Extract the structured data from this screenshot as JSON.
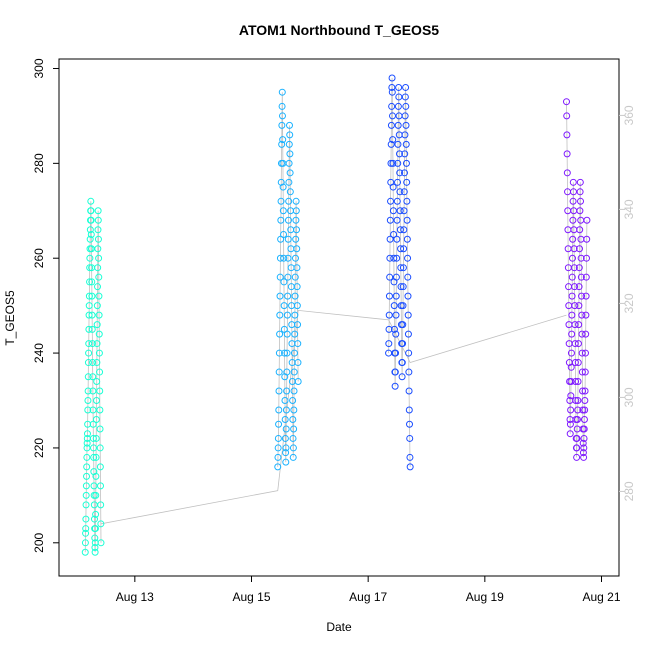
{
  "chart_data": {
    "type": "scatter",
    "title": "ATOM1 Northbound T_GEOS5",
    "xlabel": "Date",
    "ylabel": "T_GEOS5",
    "x_ticks": [
      "Aug 13",
      "Aug 15",
      "Aug 17",
      "Aug 19",
      "Aug 21"
    ],
    "x_tick_days": [
      13,
      15,
      17,
      19,
      21
    ],
    "xlim_days": [
      11.7,
      21.3
    ],
    "y_ticks": [
      200,
      220,
      240,
      260,
      280,
      300
    ],
    "ylim": [
      193,
      302
    ],
    "y2_ticks": [
      280,
      300,
      320,
      340,
      360
    ],
    "y2lim": [
      262,
      372
    ],
    "y2_color": "#c8c8c8",
    "grid": false,
    "legend": "none",
    "line_color": "#c0c0c0",
    "series": [
      {
        "color": "#1affd5",
        "x_start_day": 12.15,
        "x_end_day": 12.42,
        "values": [
          198,
          200,
          202,
          203,
          205,
          208,
          210,
          212,
          214,
          216,
          218,
          220,
          221,
          222,
          223,
          225,
          228,
          230,
          232,
          235,
          238,
          240,
          242,
          245,
          248,
          250,
          252,
          255,
          258,
          260,
          262,
          264,
          266,
          268,
          270,
          272,
          270,
          268,
          265,
          262,
          258,
          255,
          252,
          248,
          245,
          242,
          238,
          235,
          232,
          228,
          225,
          222,
          220,
          218,
          215,
          212,
          210,
          208,
          205,
          203,
          201,
          199,
          198,
          200,
          203,
          206,
          210,
          214,
          218,
          222,
          226,
          230,
          234,
          238,
          242,
          246,
          250,
          254,
          258,
          262,
          266,
          270,
          268,
          264,
          260,
          256,
          252,
          248,
          244,
          240,
          236,
          232,
          228,
          224,
          220,
          216,
          212,
          208,
          204,
          200
        ]
      },
      {
        "color": "#1ab2ff",
        "x_start_day": 15.45,
        "x_end_day": 15.8,
        "values": [
          216,
          218,
          220,
          222,
          225,
          228,
          232,
          236,
          240,
          244,
          248,
          252,
          256,
          260,
          264,
          268,
          272,
          276,
          280,
          284,
          288,
          292,
          295,
          290,
          285,
          280,
          275,
          270,
          265,
          260,
          255,
          250,
          245,
          240,
          235,
          230,
          226,
          222,
          219,
          217,
          220,
          224,
          228,
          232,
          236,
          240,
          244,
          248,
          252,
          256,
          260,
          264,
          268,
          272,
          276,
          280,
          284,
          288,
          286,
          282,
          278,
          274,
          270,
          266,
          262,
          258,
          254,
          250,
          246,
          242,
          238,
          234,
          230,
          226,
          222,
          218,
          220,
          224,
          228,
          232,
          236,
          240,
          244,
          248,
          252,
          256,
          260,
          264,
          268,
          272,
          270,
          266,
          262,
          258,
          254,
          250,
          246,
          242,
          238,
          234
        ]
      },
      {
        "color": "#1a4dff",
        "x_start_day": 17.35,
        "x_end_day": 17.72,
        "values": [
          240,
          242,
          245,
          248,
          252,
          256,
          260,
          264,
          268,
          272,
          276,
          280,
          284,
          288,
          292,
          296,
          298,
          295,
          290,
          285,
          280,
          275,
          270,
          265,
          260,
          255,
          250,
          245,
          240,
          236,
          233,
          236,
          240,
          244,
          248,
          252,
          256,
          260,
          264,
          268,
          272,
          276,
          280,
          284,
          288,
          292,
          296,
          294,
          290,
          286,
          282,
          278,
          274,
          270,
          266,
          262,
          258,
          254,
          250,
          246,
          242,
          238,
          235,
          238,
          242,
          246,
          250,
          254,
          258,
          262,
          266,
          270,
          274,
          278,
          282,
          286,
          290,
          294,
          296,
          292,
          288,
          284,
          280,
          276,
          272,
          268,
          264,
          260,
          256,
          252,
          248,
          244,
          240,
          236,
          232,
          228,
          225,
          222,
          218,
          216
        ]
      },
      {
        "color": "#7f1aff",
        "x_start_day": 20.4,
        "x_end_day": 20.75,
        "values": [
          293,
          290,
          286,
          282,
          278,
          274,
          270,
          266,
          262,
          258,
          254,
          250,
          246,
          242,
          238,
          234,
          230,
          226,
          223,
          225,
          228,
          231,
          234,
          237,
          240,
          244,
          248,
          252,
          256,
          260,
          264,
          268,
          272,
          276,
          274,
          270,
          266,
          262,
          258,
          254,
          250,
          246,
          242,
          238,
          234,
          230,
          226,
          222,
          220,
          218,
          220,
          222,
          224,
          226,
          228,
          230,
          234,
          238,
          242,
          246,
          250,
          254,
          258,
          262,
          266,
          270,
          274,
          276,
          272,
          268,
          264,
          260,
          256,
          252,
          248,
          244,
          240,
          236,
          232,
          228,
          224,
          221,
          219,
          218,
          220,
          222,
          224,
          226,
          228,
          230,
          232,
          236,
          240,
          244,
          248,
          252,
          256,
          260,
          264,
          268
        ]
      }
    ],
    "connector_line": {
      "x_days": [
        12.42,
        15.45,
        15.8,
        17.35,
        17.72,
        20.4
      ],
      "values": [
        204,
        211,
        249,
        247,
        238,
        248
      ]
    }
  }
}
